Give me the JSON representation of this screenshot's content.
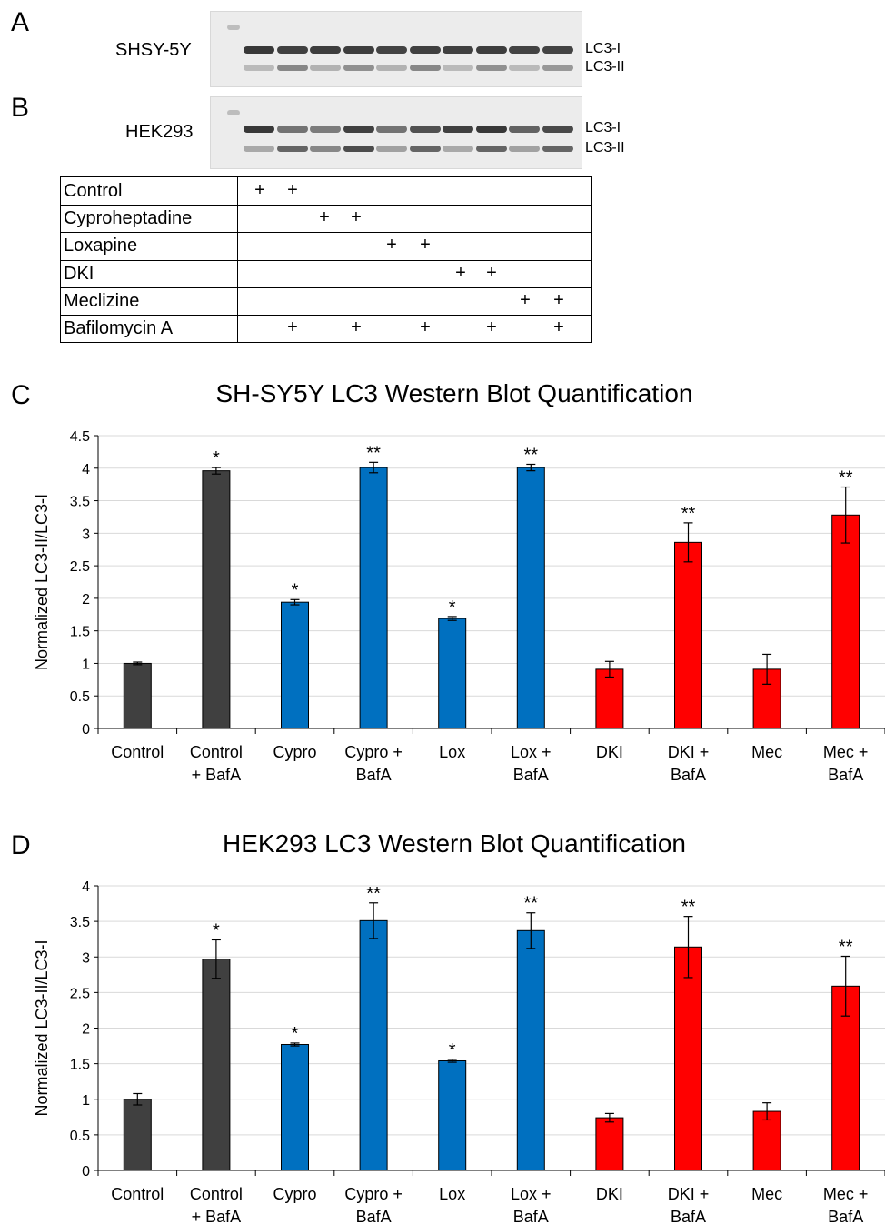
{
  "panels": {
    "a": "A",
    "b": "B",
    "c": "C",
    "d": "D"
  },
  "blots": {
    "shsy5y": {
      "cell_line": "SHSY-5Y",
      "band_upper": "LC3-I",
      "band_lower": "LC3-II",
      "lane_upper": [
        0.85,
        0.8,
        0.82,
        0.82,
        0.78,
        0.8,
        0.8,
        0.82,
        0.78,
        0.78
      ],
      "lane_lower": [
        0.2,
        0.5,
        0.25,
        0.45,
        0.25,
        0.5,
        0.2,
        0.45,
        0.2,
        0.4
      ]
    },
    "hek293": {
      "cell_line": "HEK293",
      "band_upper": "LC3-I",
      "band_lower": "LC3-II",
      "lane_upper": [
        0.85,
        0.5,
        0.45,
        0.8,
        0.5,
        0.7,
        0.8,
        0.85,
        0.6,
        0.75
      ],
      "lane_lower": [
        0.3,
        0.7,
        0.5,
        0.85,
        0.35,
        0.7,
        0.3,
        0.7,
        0.35,
        0.7
      ]
    }
  },
  "treatment_table": {
    "rows": [
      {
        "label": "Control",
        "marks": [
          "+",
          "+",
          "",
          "",
          "",
          "",
          "",
          "",
          "",
          ""
        ]
      },
      {
        "label": "Cyproheptadine",
        "marks": [
          "",
          "",
          "+",
          "+",
          "",
          "",
          "",
          "",
          "",
          ""
        ]
      },
      {
        "label": "Loxapine",
        "marks": [
          "",
          "",
          "",
          "",
          "+",
          "+",
          "",
          "",
          "",
          ""
        ]
      },
      {
        "label": "DKI",
        "marks": [
          "",
          "",
          "",
          "",
          "",
          "",
          "+",
          "+",
          "",
          ""
        ]
      },
      {
        "label": "Meclizine",
        "marks": [
          "",
          "",
          "",
          "",
          "",
          "",
          "",
          "",
          "+",
          "+"
        ]
      },
      {
        "label": "Bafilomycin A",
        "marks": [
          "",
          "+",
          "",
          "+",
          "",
          "+",
          "",
          "+",
          "",
          "+"
        ]
      }
    ]
  },
  "colors": {
    "control": "#404040",
    "drug_blue": "#0070c0",
    "drug_red": "#ff0000",
    "grid": "#d9d9d9"
  },
  "chart_data": [
    {
      "type": "bar",
      "title": "SH-SY5Y LC3 Western Blot Quantification",
      "ylabel": "Normalized LC3-II/LC3-I",
      "xlabel": "",
      "ylim": [
        0,
        4.5
      ],
      "yticks": [
        "0",
        "0.5",
        "1",
        "1.5",
        "2",
        "2.5",
        "3",
        "3.5",
        "4",
        "4.5"
      ],
      "categories": [
        [
          "Control"
        ],
        [
          "Control",
          "+ BafA"
        ],
        [
          "Cypro"
        ],
        [
          "Cypro +",
          "BafA"
        ],
        [
          "Lox"
        ],
        [
          "Lox +",
          "BafA"
        ],
        [
          "DKI"
        ],
        [
          "DKI +",
          "BafA"
        ],
        [
          "Mec"
        ],
        [
          "Mec +",
          "BafA"
        ]
      ],
      "values": [
        1.0,
        3.96,
        1.94,
        4.01,
        1.69,
        4.01,
        0.91,
        2.86,
        0.91,
        3.28
      ],
      "errors": [
        0.02,
        0.05,
        0.04,
        0.08,
        0.03,
        0.05,
        0.12,
        0.3,
        0.23,
        0.43
      ],
      "significance": [
        "",
        "*",
        "*",
        "**",
        "*",
        "**",
        "",
        "**",
        "",
        "**"
      ],
      "bar_colors": [
        "control",
        "control",
        "drug_blue",
        "drug_blue",
        "drug_blue",
        "drug_blue",
        "drug_red",
        "drug_red",
        "drug_red",
        "drug_red"
      ],
      "grid": true
    },
    {
      "type": "bar",
      "title": "HEK293 LC3 Western Blot Quantification",
      "ylabel": "Normalized LC3-II/LC3-I",
      "xlabel": "",
      "ylim": [
        0,
        4
      ],
      "yticks": [
        "0",
        "0.5",
        "1",
        "1.5",
        "2",
        "2.5",
        "3",
        "3.5",
        "4"
      ],
      "categories": [
        [
          "Control"
        ],
        [
          "Control",
          "+ BafA"
        ],
        [
          "Cypro"
        ],
        [
          "Cypro +",
          "BafA"
        ],
        [
          "Lox"
        ],
        [
          "Lox +",
          "BafA"
        ],
        [
          "DKI"
        ],
        [
          "DKI +",
          "BafA"
        ],
        [
          "Mec"
        ],
        [
          "Mec +",
          "BafA"
        ]
      ],
      "values": [
        1.0,
        2.97,
        1.77,
        3.51,
        1.54,
        3.37,
        0.74,
        3.14,
        0.83,
        2.59
      ],
      "errors": [
        0.08,
        0.27,
        0.02,
        0.25,
        0.02,
        0.25,
        0.06,
        0.43,
        0.12,
        0.42
      ],
      "significance": [
        "",
        "*",
        "*",
        "**",
        "*",
        "**",
        "",
        "**",
        "",
        "**"
      ],
      "bar_colors": [
        "control",
        "control",
        "drug_blue",
        "drug_blue",
        "drug_blue",
        "drug_blue",
        "drug_red",
        "drug_red",
        "drug_red",
        "drug_red"
      ],
      "grid": true
    }
  ]
}
